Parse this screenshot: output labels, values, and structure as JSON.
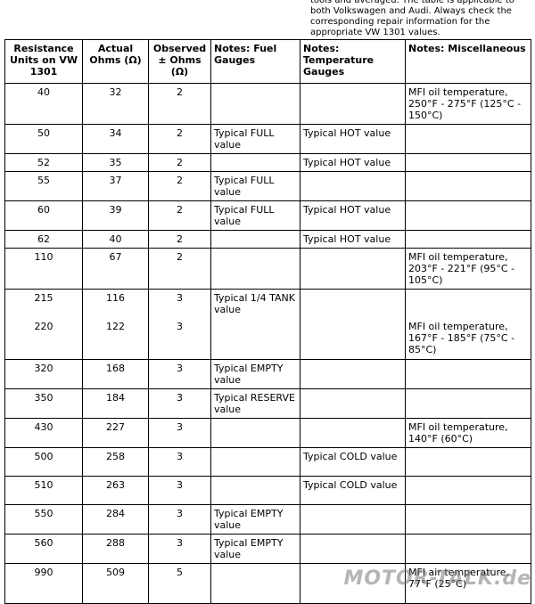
{
  "intro": "tools and averaged. The table is applicable to both Volkswagen and Audi. Always check the corresponding repair information for the appropriate VW 1301 values.",
  "table": {
    "header": [
      "Resistance Units on VW 1301",
      "Actual Ohms (Ω)",
      "Observed ± Ohms (Ω)",
      "Notes: Fuel Gauges",
      "Notes: Temperature Gauges",
      "Notes: Miscellaneous"
    ],
    "rows": [
      [
        40,
        32,
        2,
        null,
        null,
        "MFI oil temperature, 250°F - 275°F (125°C - 150°C)"
      ],
      [
        50,
        34,
        2,
        "Typical FULL value",
        "Typical HOT value",
        null
      ],
      [
        52,
        35,
        2,
        null,
        "Typical HOT value",
        null
      ],
      [
        55,
        37,
        2,
        "Typical FULL value",
        null,
        null
      ],
      [
        60,
        39,
        2,
        "Typical FULL value",
        "Typical HOT value",
        null
      ],
      [
        62,
        40,
        2,
        null,
        "Typical HOT value",
        null
      ],
      [
        110,
        67,
        2,
        null,
        null,
        "MFI oil temperature, 203°F - 221°F (95°C - 105°C)"
      ],
      [
        215,
        116,
        3,
        "Typical 1/4 TANK value",
        null,
        null
      ],
      [
        220,
        122,
        3,
        null,
        null,
        "MFI oil temperature, 167°F - 185°F (75°C - 85°C)"
      ],
      [
        320,
        168,
        3,
        "Typical EMPTY value",
        null,
        null
      ],
      [
        350,
        184,
        3,
        "Typical RESERVE value",
        null,
        null
      ],
      [
        430,
        227,
        3,
        null,
        null,
        "MFI oil temperature, 140°F (60°C)"
      ],
      [
        500,
        258,
        3,
        null,
        "Typical COLD value",
        null
      ],
      [
        510,
        263,
        3,
        null,
        "Typical COLD value",
        null
      ],
      [
        550,
        284,
        3,
        "Typical EMPTY value",
        null,
        null
      ],
      [
        560,
        288,
        3,
        "Typical EMPTY value",
        null,
        null
      ],
      [
        990,
        509,
        5,
        null,
        null,
        "MFI air temperature, 77°F (25°C)"
      ]
    ]
  },
  "watermark": "MOTOR-TALK.de"
}
